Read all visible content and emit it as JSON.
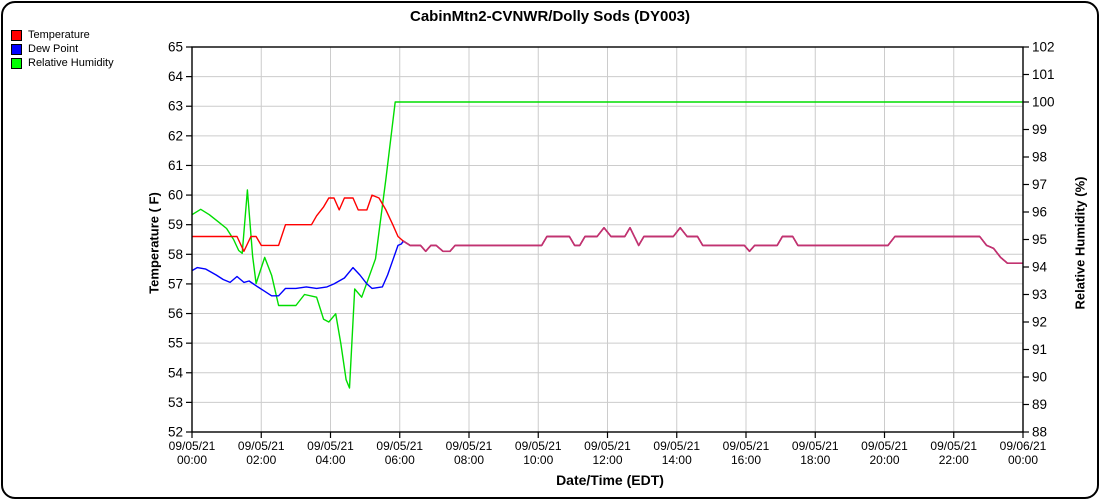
{
  "chart_data": {
    "type": "line",
    "title": "CabinMtn2-CVNWR/Dolly Sods (DY003)",
    "xlabel": "Date/Time (EDT)",
    "x_unit": "hours",
    "x_range": [
      0,
      24
    ],
    "x_tick_step_hours": 2,
    "x_ticks": [
      {
        "date": "09/05/21",
        "time": "00:00"
      },
      {
        "date": "09/05/21",
        "time": "02:00"
      },
      {
        "date": "09/05/21",
        "time": "04:00"
      },
      {
        "date": "09/05/21",
        "time": "06:00"
      },
      {
        "date": "09/05/21",
        "time": "08:00"
      },
      {
        "date": "09/05/21",
        "time": "10:00"
      },
      {
        "date": "09/05/21",
        "time": "12:00"
      },
      {
        "date": "09/05/21",
        "time": "14:00"
      },
      {
        "date": "09/05/21",
        "time": "16:00"
      },
      {
        "date": "09/05/21",
        "time": "18:00"
      },
      {
        "date": "09/05/21",
        "time": "20:00"
      },
      {
        "date": "09/05/21",
        "time": "22:00"
      },
      {
        "date": "09/06/21",
        "time": "00:00"
      }
    ],
    "axes": {
      "left": {
        "label": "Temperature ( F)",
        "min": 52,
        "max": 65,
        "step": 1
      },
      "right": {
        "label": "Relative Humidity (%)",
        "min": 88,
        "max": 102,
        "step": 1
      }
    },
    "grid": {
      "color": "#cccccc",
      "horizontal_from": "left-axis",
      "vertical_every_hours": 2
    },
    "axis_color": "#000000",
    "merged_temp_dew_color": "#c23370",
    "series": [
      {
        "name": "Temperature",
        "axis": "left",
        "color": "#ff0000",
        "legend_color": "#ff0000",
        "points": [
          [
            0,
            58.6
          ],
          [
            1.3,
            58.6
          ],
          [
            1.5,
            58.1
          ],
          [
            1.7,
            58.6
          ],
          [
            1.85,
            58.6
          ],
          [
            2.0,
            58.3
          ],
          [
            2.5,
            58.3
          ],
          [
            2.7,
            59.0
          ],
          [
            3.45,
            59.0
          ],
          [
            3.6,
            59.3
          ],
          [
            3.8,
            59.6
          ],
          [
            3.95,
            59.9
          ],
          [
            4.1,
            59.9
          ],
          [
            4.25,
            59.5
          ],
          [
            4.4,
            59.9
          ],
          [
            4.65,
            59.9
          ],
          [
            4.8,
            59.5
          ],
          [
            5.05,
            59.5
          ],
          [
            5.2,
            60.0
          ],
          [
            5.4,
            59.9
          ],
          [
            5.6,
            59.5
          ],
          [
            5.8,
            59.0
          ],
          [
            5.95,
            58.6
          ],
          [
            6.1,
            58.45
          ],
          [
            6.3,
            58.3
          ],
          [
            6.6,
            58.3
          ],
          [
            6.75,
            58.1
          ],
          [
            6.9,
            58.3
          ],
          [
            7.05,
            58.3
          ],
          [
            7.25,
            58.1
          ],
          [
            7.45,
            58.1
          ],
          [
            7.6,
            58.3
          ],
          [
            10.1,
            58.3
          ],
          [
            10.25,
            58.6
          ],
          [
            10.9,
            58.6
          ],
          [
            11.05,
            58.3
          ],
          [
            11.2,
            58.3
          ],
          [
            11.35,
            58.6
          ],
          [
            11.7,
            58.6
          ],
          [
            11.9,
            58.9
          ],
          [
            12.1,
            58.6
          ],
          [
            12.5,
            58.6
          ],
          [
            12.65,
            58.9
          ],
          [
            12.9,
            58.3
          ],
          [
            13.05,
            58.6
          ],
          [
            13.9,
            58.6
          ],
          [
            14.1,
            58.9
          ],
          [
            14.3,
            58.6
          ],
          [
            14.6,
            58.6
          ],
          [
            14.75,
            58.3
          ],
          [
            15.95,
            58.3
          ],
          [
            16.1,
            58.1
          ],
          [
            16.25,
            58.3
          ],
          [
            16.9,
            58.3
          ],
          [
            17.05,
            58.6
          ],
          [
            17.35,
            58.6
          ],
          [
            17.5,
            58.3
          ],
          [
            20.1,
            58.3
          ],
          [
            20.3,
            58.6
          ],
          [
            22.75,
            58.6
          ],
          [
            22.95,
            58.3
          ],
          [
            23.15,
            58.2
          ],
          [
            23.35,
            57.9
          ],
          [
            23.55,
            57.7
          ],
          [
            24,
            57.7
          ]
        ]
      },
      {
        "name": "Dew Point",
        "axis": "left",
        "color": "#0000ff",
        "legend_color": "#0000ff",
        "points": [
          [
            0,
            57.45
          ],
          [
            0.15,
            57.55
          ],
          [
            0.4,
            57.5
          ],
          [
            0.7,
            57.3
          ],
          [
            0.9,
            57.15
          ],
          [
            1.1,
            57.05
          ],
          [
            1.3,
            57.25
          ],
          [
            1.5,
            57.05
          ],
          [
            1.65,
            57.1
          ],
          [
            1.9,
            56.9
          ],
          [
            2.1,
            56.75
          ],
          [
            2.3,
            56.6
          ],
          [
            2.5,
            56.6
          ],
          [
            2.7,
            56.85
          ],
          [
            3.0,
            56.85
          ],
          [
            3.3,
            56.9
          ],
          [
            3.6,
            56.85
          ],
          [
            3.9,
            56.9
          ],
          [
            4.1,
            57.0
          ],
          [
            4.4,
            57.2
          ],
          [
            4.65,
            57.55
          ],
          [
            4.85,
            57.3
          ],
          [
            5.05,
            57.0
          ],
          [
            5.2,
            56.85
          ],
          [
            5.5,
            56.9
          ],
          [
            5.65,
            57.3
          ],
          [
            5.8,
            57.8
          ],
          [
            5.95,
            58.3
          ],
          [
            6.05,
            58.35
          ],
          [
            6.1,
            58.45
          ],
          [
            6.3,
            58.3
          ],
          [
            6.6,
            58.3
          ],
          [
            6.75,
            58.1
          ],
          [
            6.9,
            58.3
          ],
          [
            7.05,
            58.3
          ],
          [
            7.25,
            58.1
          ],
          [
            7.45,
            58.1
          ],
          [
            7.6,
            58.3
          ],
          [
            10.1,
            58.3
          ],
          [
            10.25,
            58.6
          ],
          [
            10.9,
            58.6
          ],
          [
            11.05,
            58.3
          ],
          [
            11.2,
            58.3
          ],
          [
            11.35,
            58.6
          ],
          [
            11.7,
            58.6
          ],
          [
            11.9,
            58.9
          ],
          [
            12.1,
            58.6
          ],
          [
            12.5,
            58.6
          ],
          [
            12.65,
            58.9
          ],
          [
            12.9,
            58.3
          ],
          [
            13.05,
            58.6
          ],
          [
            13.9,
            58.6
          ],
          [
            14.1,
            58.9
          ],
          [
            14.3,
            58.6
          ],
          [
            14.6,
            58.6
          ],
          [
            14.75,
            58.3
          ],
          [
            15.95,
            58.3
          ],
          [
            16.1,
            58.1
          ],
          [
            16.25,
            58.3
          ],
          [
            16.9,
            58.3
          ],
          [
            17.05,
            58.6
          ],
          [
            17.35,
            58.6
          ],
          [
            17.5,
            58.3
          ],
          [
            20.1,
            58.3
          ],
          [
            20.3,
            58.6
          ],
          [
            22.75,
            58.6
          ],
          [
            22.95,
            58.3
          ],
          [
            23.15,
            58.2
          ],
          [
            23.35,
            57.9
          ],
          [
            23.55,
            57.7
          ],
          [
            24,
            57.7
          ]
        ]
      },
      {
        "name": "Relative Humidity",
        "axis": "right",
        "color": "#00dd00",
        "legend_color": "#00ff00",
        "points": [
          [
            0,
            95.9
          ],
          [
            0.25,
            96.1
          ],
          [
            0.5,
            95.9
          ],
          [
            0.75,
            95.65
          ],
          [
            1.0,
            95.4
          ],
          [
            1.2,
            95.0
          ],
          [
            1.35,
            94.6
          ],
          [
            1.45,
            94.5
          ],
          [
            1.6,
            96.8
          ],
          [
            1.75,
            94.4
          ],
          [
            1.85,
            93.4
          ],
          [
            2.1,
            94.35
          ],
          [
            2.3,
            93.7
          ],
          [
            2.5,
            92.6
          ],
          [
            3.0,
            92.6
          ],
          [
            3.25,
            93.0
          ],
          [
            3.6,
            92.9
          ],
          [
            3.8,
            92.1
          ],
          [
            3.95,
            92.0
          ],
          [
            4.15,
            92.3
          ],
          [
            4.3,
            91.2
          ],
          [
            4.45,
            89.9
          ],
          [
            4.55,
            89.6
          ],
          [
            4.7,
            93.2
          ],
          [
            4.9,
            92.9
          ],
          [
            5.3,
            94.3
          ],
          [
            5.6,
            97.2
          ],
          [
            5.87,
            100
          ],
          [
            24,
            100
          ]
        ]
      }
    ]
  }
}
